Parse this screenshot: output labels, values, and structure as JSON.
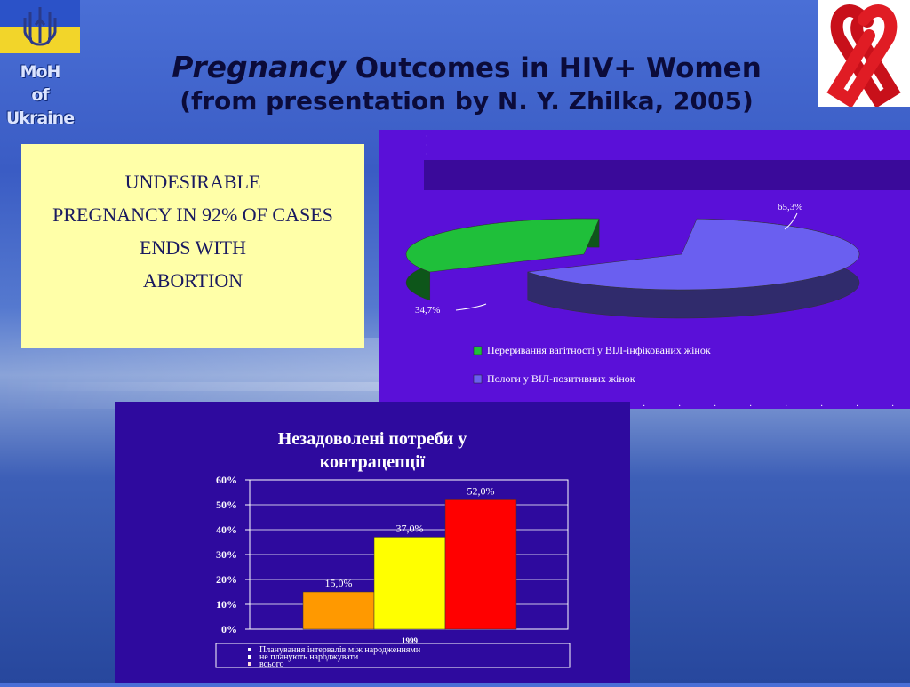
{
  "logo": {
    "line1": "MoH",
    "line2": "of Ukraine",
    "flag_colors": [
      "#2b52c8",
      "#f2d52a"
    ],
    "ribbon_icon": "red-ribbon-icon"
  },
  "title": {
    "word1": "Pregnancy",
    "rest1": "Outcomes in HIV+ Women",
    "line2": "(from presentation by N. Y. Zhilka, 2005)"
  },
  "note": {
    "line1": "UNDESIRABLE",
    "line2": "PREGNANCY IN 92% OF CASES",
    "line3": "ENDS WITH",
    "line4": "ABORTION"
  },
  "chart_data": [
    {
      "type": "pie",
      "title": "",
      "slices": [
        {
          "label": "Переривання вагітності у ВІЛ-інфікованих жінок",
          "value": 34.7,
          "display": "34,7%",
          "color": "#1fbf3a"
        },
        {
          "label": "Пологи у ВІЛ-позитивних жінок",
          "value": 65.3,
          "display": "65,3%",
          "color": "#6a5ff0"
        }
      ],
      "legend_position": "bottom"
    },
    {
      "type": "bar",
      "title": "Незадоволені потреби у контрацепції",
      "categories": [
        "1999"
      ],
      "series": [
        {
          "name": "Планування інтервалів між народженнями",
          "values": [
            15.0
          ],
          "display": "15,0%",
          "color": "#ff9900"
        },
        {
          "name": "не планують народжувати",
          "values": [
            37.0
          ],
          "display": "37,0%",
          "color": "#ffff00"
        },
        {
          "name": "всього",
          "values": [
            52.0
          ],
          "display": "52,0%",
          "color": "#ff0000"
        }
      ],
      "ylim": [
        0,
        60
      ],
      "yticks": [
        "0%",
        "10%",
        "20%",
        "30%",
        "40%",
        "50%",
        "60%"
      ],
      "grid": true,
      "legend_position": "bottom"
    }
  ]
}
